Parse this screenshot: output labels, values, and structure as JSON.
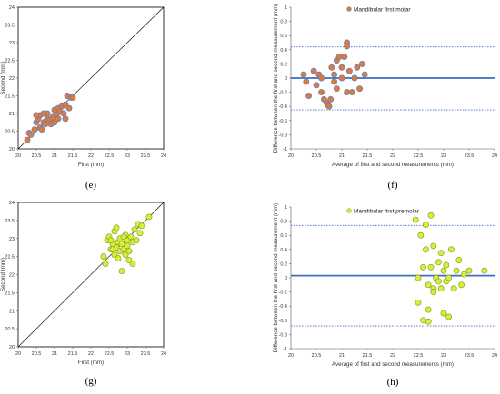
{
  "chart_data": [
    {
      "panel": "(e)",
      "type": "scatter",
      "xlabel": "First (mm)",
      "ylabel": "Second (mm)",
      "xlim": [
        20,
        24
      ],
      "ylim": [
        20,
        24
      ],
      "x_ticks": [
        "20",
        "20.5",
        "21",
        "21.5",
        "22",
        "22.5",
        "23",
        "23.5",
        "24"
      ],
      "y_ticks": [
        "20",
        "20.5",
        "21",
        "21.5",
        "22",
        "22.5",
        "23",
        "23.5",
        "24"
      ],
      "identity_line": true,
      "marker_color": "#e07a3a",
      "marker_edge": "#5b7fc4",
      "points": [
        [
          20.25,
          20.25
        ],
        [
          20.3,
          20.45
        ],
        [
          20.35,
          20.4
        ],
        [
          20.45,
          20.55
        ],
        [
          20.5,
          20.75
        ],
        [
          20.55,
          20.85
        ],
        [
          20.6,
          20.95
        ],
        [
          20.6,
          20.6
        ],
        [
          20.65,
          20.55
        ],
        [
          20.7,
          20.75
        ],
        [
          20.75,
          20.7
        ],
        [
          20.8,
          20.85
        ],
        [
          20.8,
          21.0
        ],
        [
          20.85,
          20.8
        ],
        [
          20.9,
          20.7
        ],
        [
          20.95,
          20.9
        ],
        [
          21.0,
          21.1
        ],
        [
          21.0,
          20.75
        ],
        [
          21.05,
          20.95
        ],
        [
          21.1,
          21.15
        ],
        [
          21.1,
          20.85
        ],
        [
          21.15,
          21.05
        ],
        [
          21.2,
          21.2
        ],
        [
          21.25,
          21.0
        ],
        [
          21.3,
          21.25
        ],
        [
          21.3,
          20.85
        ],
        [
          21.35,
          21.5
        ],
        [
          21.4,
          21.15
        ],
        [
          21.45,
          21.45
        ],
        [
          21.5,
          21.45
        ],
        [
          20.5,
          20.95
        ],
        [
          20.7,
          21.0
        ]
      ]
    },
    {
      "panel": "(f)",
      "type": "scatter",
      "legend": "Mandibular first molar",
      "xlabel": "Average of first and second measurements (mm)",
      "ylabel": "Difference between the first and second measurement (mm)",
      "xlim": [
        20,
        24
      ],
      "ylim": [
        -1,
        1
      ],
      "x_ticks": [
        "20",
        "20.5",
        "21",
        "21.5",
        "22",
        "22.5",
        "23",
        "23.5",
        "24"
      ],
      "y_ticks": [
        "-1",
        "-0.8",
        "-0.6",
        "-0.4",
        "-0.2",
        "0",
        "0.2",
        "0.4",
        "0.6",
        "0.8",
        "1"
      ],
      "mean_line": 0.0,
      "upper_loa": 0.44,
      "lower_loa": -0.45,
      "marker_color": "#e07a3a",
      "marker_edge": "#5b7fc4",
      "points": [
        [
          20.25,
          0.05
        ],
        [
          20.3,
          -0.05
        ],
        [
          20.35,
          -0.25
        ],
        [
          20.45,
          0.1
        ],
        [
          20.5,
          -0.1
        ],
        [
          20.55,
          0.05
        ],
        [
          20.6,
          -0.2
        ],
        [
          20.6,
          0.0
        ],
        [
          20.65,
          -0.3
        ],
        [
          20.7,
          -0.35
        ],
        [
          20.72,
          -0.38
        ],
        [
          20.75,
          -0.4
        ],
        [
          20.78,
          -0.3
        ],
        [
          20.8,
          0.15
        ],
        [
          20.85,
          0.05
        ],
        [
          20.85,
          -0.05
        ],
        [
          20.9,
          0.25
        ],
        [
          20.9,
          -0.15
        ],
        [
          20.95,
          0.3
        ],
        [
          21.0,
          0.0
        ],
        [
          21.0,
          0.15
        ],
        [
          21.05,
          0.3
        ],
        [
          21.1,
          0.5
        ],
        [
          21.1,
          0.45
        ],
        [
          21.1,
          -0.2
        ],
        [
          21.15,
          0.1
        ],
        [
          21.2,
          -0.2
        ],
        [
          21.25,
          0.0
        ],
        [
          21.3,
          0.15
        ],
        [
          21.35,
          -0.15
        ],
        [
          21.4,
          0.2
        ],
        [
          21.45,
          0.05
        ]
      ]
    },
    {
      "panel": "(g)",
      "type": "scatter",
      "xlabel": "First (mm)",
      "ylabel": "Second (mm)",
      "xlim": [
        20,
        24
      ],
      "ylim": [
        20,
        24
      ],
      "x_ticks": [
        "20",
        "20.5",
        "21",
        "21.5",
        "22",
        "22.5",
        "23",
        "23.5",
        "24"
      ],
      "y_ticks": [
        "20",
        "20.5",
        "21",
        "21.5",
        "22",
        "22.5",
        "23",
        "23.5",
        "24"
      ],
      "identity_line": true,
      "marker_color": "#d8ef3a",
      "marker_edge": "#8aa02a",
      "points": [
        [
          22.35,
          22.5
        ],
        [
          22.4,
          22.3
        ],
        [
          22.45,
          22.95
        ],
        [
          22.5,
          23.05
        ],
        [
          22.55,
          22.7
        ],
        [
          22.6,
          22.85
        ],
        [
          22.65,
          23.2
        ],
        [
          22.65,
          22.55
        ],
        [
          22.7,
          22.75
        ],
        [
          22.7,
          23.3
        ],
        [
          22.75,
          22.9
        ],
        [
          22.75,
          22.45
        ],
        [
          22.8,
          23.0
        ],
        [
          22.8,
          22.65
        ],
        [
          22.85,
          22.85
        ],
        [
          22.85,
          22.1
        ],
        [
          22.9,
          22.7
        ],
        [
          22.95,
          23.1
        ],
        [
          22.95,
          22.55
        ],
        [
          23.0,
          22.8
        ],
        [
          23.0,
          22.95
        ],
        [
          23.05,
          22.65
        ],
        [
          23.1,
          23.05
        ],
        [
          23.15,
          22.3
        ],
        [
          23.15,
          22.9
        ],
        [
          23.2,
          23.25
        ],
        [
          23.25,
          22.95
        ],
        [
          23.3,
          23.4
        ],
        [
          23.35,
          23.15
        ],
        [
          23.4,
          23.35
        ],
        [
          23.6,
          23.6
        ],
        [
          22.6,
          22.7
        ],
        [
          22.9,
          23.05
        ],
        [
          23.05,
          22.4
        ],
        [
          22.55,
          22.95
        ]
      ]
    },
    {
      "panel": "(h)",
      "type": "scatter",
      "legend": "Mandibular first premolar",
      "xlabel": "Average of first and second measurements (mm)",
      "ylabel": "Difference between the first and second measurement (mm)",
      "xlim": [
        20,
        24
      ],
      "ylim": [
        -1,
        1
      ],
      "x_ticks": [
        "20",
        "20.5",
        "21",
        "21.5",
        "22",
        "22.5",
        "23",
        "23.5",
        "24"
      ],
      "y_ticks": [
        "-1",
        "-0.8",
        "-0.6",
        "-0.4",
        "-0.2",
        "0",
        "0.2",
        "0.4",
        "0.6",
        "0.8",
        "1"
      ],
      "mean_line": 0.03,
      "upper_loa": 0.74,
      "lower_loa": -0.68,
      "marker_color": "#d8ef3a",
      "marker_edge": "#8aa02a",
      "points": [
        [
          22.45,
          0.82
        ],
        [
          22.5,
          0.0
        ],
        [
          22.5,
          -0.35
        ],
        [
          22.55,
          0.6
        ],
        [
          22.6,
          0.15
        ],
        [
          22.6,
          -0.6
        ],
        [
          22.65,
          0.75
        ],
        [
          22.65,
          0.4
        ],
        [
          22.7,
          -0.1
        ],
        [
          22.7,
          -0.62
        ],
        [
          22.75,
          0.88
        ],
        [
          22.75,
          0.15
        ],
        [
          22.8,
          -0.15
        ],
        [
          22.8,
          0.45
        ],
        [
          22.8,
          -0.2
        ],
        [
          22.85,
          0.0
        ],
        [
          22.9,
          0.22
        ],
        [
          22.9,
          -0.05
        ],
        [
          22.95,
          0.35
        ],
        [
          22.95,
          -0.15
        ],
        [
          23.0,
          0.1
        ],
        [
          23.0,
          -0.5
        ],
        [
          23.05,
          0.18
        ],
        [
          23.05,
          -0.05
        ],
        [
          23.1,
          0.0
        ],
        [
          23.1,
          -0.55
        ],
        [
          23.15,
          0.4
        ],
        [
          23.2,
          -0.15
        ],
        [
          23.25,
          0.1
        ],
        [
          23.3,
          0.25
        ],
        [
          23.35,
          -0.1
        ],
        [
          23.4,
          0.05
        ],
        [
          23.5,
          0.1
        ],
        [
          23.8,
          0.1
        ],
        [
          22.7,
          -0.45
        ]
      ]
    }
  ]
}
